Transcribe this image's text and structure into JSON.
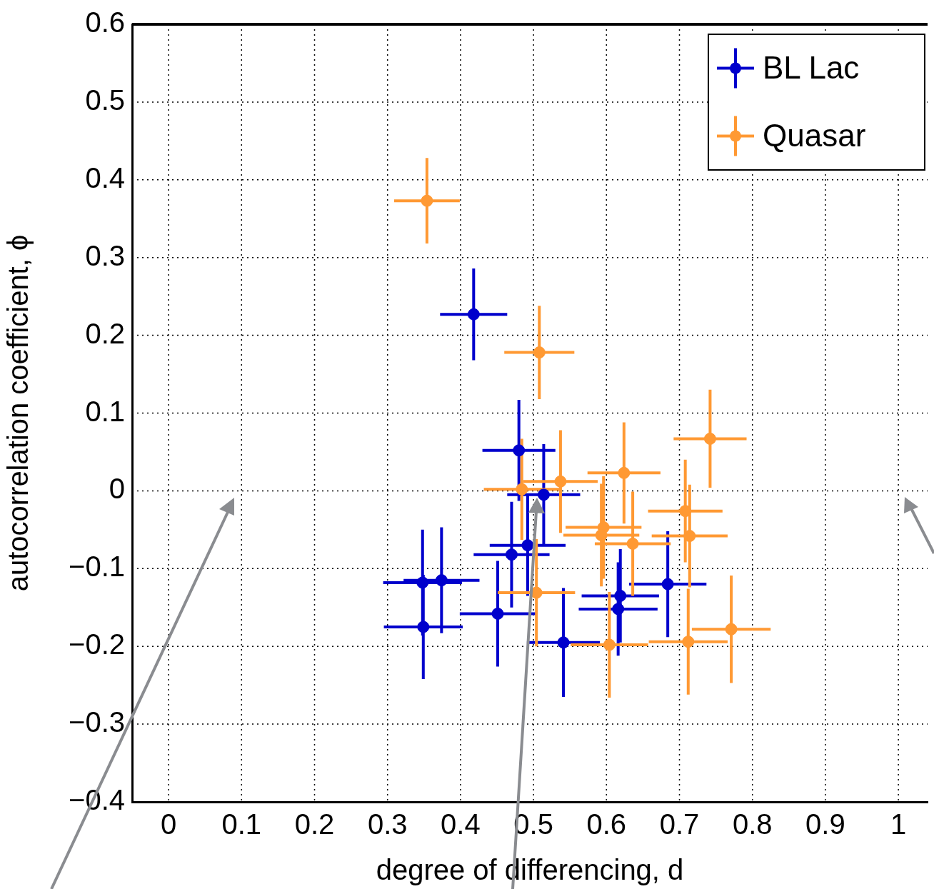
{
  "chart_data": {
    "type": "scatter",
    "xlabel": "degree of differencing, d",
    "ylabel": "autocorrelation coefficient, ϕ",
    "xlim": [
      -0.05,
      1.04
    ],
    "ylim": [
      -0.4,
      0.6
    ],
    "xticks": [
      0,
      0.1,
      0.2,
      0.3,
      0.4,
      0.5,
      0.6,
      0.7,
      0.8,
      0.9,
      1
    ],
    "yticks": [
      {
        "value": -0.4,
        "label": "−0.4"
      },
      {
        "value": -0.3,
        "label": "−0.3"
      },
      {
        "value": -0.2,
        "label": "−0.2"
      },
      {
        "value": -0.1,
        "label": "−0.1"
      },
      0,
      0.1,
      0.2,
      0.3,
      0.4,
      0.5,
      0.6
    ],
    "grid": true,
    "legend": "top right",
    "marker": "circle",
    "series": [
      {
        "name": "BL Lac",
        "color": "#0000cc",
        "x": [
          0.418,
          0.48,
          0.514,
          0.492,
          0.47,
          0.348,
          0.374,
          0.349,
          0.451,
          0.541,
          0.619,
          0.616,
          0.684
        ],
        "values": [
          0.227,
          0.052,
          -0.005,
          -0.07,
          -0.082,
          -0.118,
          -0.115,
          -0.175,
          -0.158,
          -0.195,
          -0.135,
          -0.152,
          -0.12
        ],
        "xerrors": [
          0.046,
          0.05,
          0.05,
          0.052,
          0.052,
          0.054,
          0.052,
          0.054,
          0.052,
          0.05,
          0.053,
          0.054,
          0.053
        ],
        "errors": [
          0.059,
          0.065,
          0.065,
          0.065,
          0.068,
          0.068,
          0.068,
          0.067,
          0.068,
          0.07,
          0.06,
          0.06,
          0.068
        ]
      },
      {
        "name": "Quasar",
        "color": "#ff9933",
        "x": [
          0.354,
          0.508,
          0.742,
          0.484,
          0.537,
          0.624,
          0.596,
          0.593,
          0.636,
          0.708,
          0.714,
          0.504,
          0.604,
          0.712,
          0.771
        ],
        "values": [
          0.373,
          0.178,
          0.067,
          0.002,
          0.012,
          0.023,
          -0.047,
          -0.057,
          -0.068,
          -0.026,
          -0.058,
          -0.131,
          -0.198,
          -0.194,
          -0.178
        ],
        "xerrors": [
          0.045,
          0.048,
          0.05,
          0.052,
          0.051,
          0.05,
          0.052,
          0.052,
          0.052,
          0.051,
          0.052,
          0.053,
          0.053,
          0.054,
          0.054
        ],
        "errors": [
          0.055,
          0.06,
          0.063,
          0.065,
          0.066,
          0.065,
          0.066,
          0.066,
          0.067,
          0.066,
          0.066,
          0.069,
          0.068,
          0.068,
          0.069
        ]
      }
    ]
  }
}
